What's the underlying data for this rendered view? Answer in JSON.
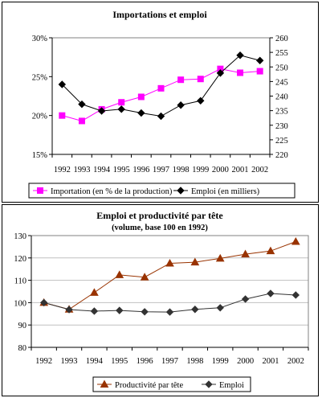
{
  "chart_data": [
    {
      "type": "line",
      "title": "Importations et emploi",
      "categories": [
        "1992",
        "1993",
        "1994",
        "1995",
        "1996",
        "1997",
        "1998",
        "1999",
        "2000",
        "2001",
        "2002"
      ],
      "y_left": {
        "ylim": [
          15,
          30
        ],
        "ticks": [
          "15%",
          "20%",
          "25%",
          "30%"
        ],
        "tick_values": [
          15,
          20,
          25,
          30
        ]
      },
      "y_right": {
        "ylim": [
          220,
          260
        ],
        "ticks": [
          "220",
          "225",
          "230",
          "235",
          "240",
          "245",
          "250",
          "255",
          "260"
        ],
        "tick_values": [
          220,
          225,
          230,
          235,
          240,
          245,
          250,
          255,
          260
        ]
      },
      "grid": false,
      "legend_position": "bottom",
      "series": [
        {
          "name": "Importation (en % de la production)",
          "axis": "left",
          "color": "#ff00ff",
          "marker": "square",
          "values": [
            20.0,
            19.3,
            20.8,
            21.7,
            22.4,
            23.5,
            24.6,
            24.7,
            26.0,
            25.5,
            25.7
          ]
        },
        {
          "name": "Emploi (en milliers)",
          "axis": "right",
          "color": "#000000",
          "marker": "diamond",
          "values": [
            244.0,
            237.2,
            234.9,
            235.5,
            234.2,
            233.1,
            236.9,
            238.4,
            247.9,
            254.0,
            252.2
          ]
        }
      ]
    },
    {
      "type": "line",
      "title": "Emploi et productivité par tête",
      "subtitle": "(volume, base 100 en 1992)",
      "categories": [
        "1992",
        "1993",
        "1994",
        "1995",
        "1996",
        "1997",
        "1998",
        "1999",
        "2000",
        "2001",
        "2002"
      ],
      "ylim": [
        80,
        130
      ],
      "ticks": [
        "80",
        "90",
        "100",
        "110",
        "120",
        "130"
      ],
      "tick_values": [
        80,
        90,
        100,
        110,
        120,
        130
      ],
      "grid": true,
      "legend_position": "bottom",
      "series": [
        {
          "name": "Productivité par tête",
          "color": "#993300",
          "marker": "triangle",
          "values": [
            100.0,
            97.0,
            104.5,
            112.4,
            111.4,
            117.6,
            118.1,
            119.8,
            121.7,
            123.1,
            127.3
          ]
        },
        {
          "name": "Emploi",
          "color": "#333333",
          "marker": "diamond",
          "values": [
            100.0,
            96.9,
            96.2,
            96.5,
            95.9,
            95.8,
            97.0,
            97.7,
            101.6,
            104.1,
            103.4
          ]
        }
      ]
    }
  ]
}
